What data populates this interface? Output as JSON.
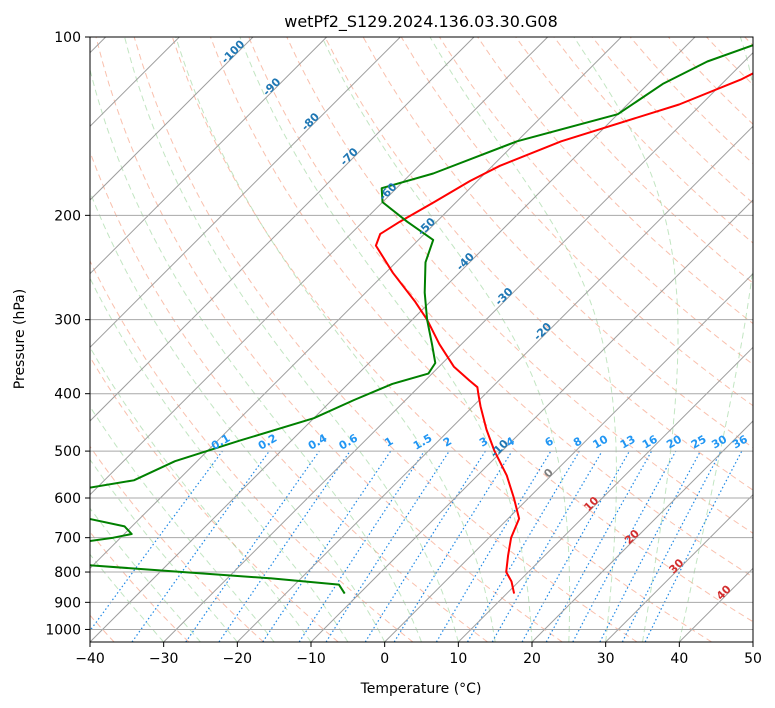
{
  "chart_data": {
    "type": "line",
    "title": "wetPf2_S129.2024.136.03.30.G08",
    "xlabel": "Temperature (°C)",
    "ylabel": "Pressure (hPa)",
    "xlim": [
      -40,
      50
    ],
    "ylim_hpa": [
      1050,
      100
    ],
    "y_scale": "log",
    "grid": true,
    "skew_degrees": 45,
    "x_ticks": [
      "−40",
      "−30",
      "−20",
      "−10",
      "0",
      "10",
      "20",
      "30",
      "40",
      "50"
    ],
    "x_tick_values": [
      -40,
      -30,
      -20,
      -10,
      0,
      10,
      20,
      30,
      40,
      50
    ],
    "y_ticks": [
      "100",
      "200",
      "300",
      "400",
      "500",
      "600",
      "700",
      "800",
      "900",
      "1000"
    ],
    "y_tick_values": [
      100,
      200,
      300,
      400,
      500,
      600,
      700,
      800,
      900,
      1000
    ],
    "series": [
      {
        "kind": "temperature",
        "color": "#ff0000",
        "points": [
          [
            100,
            -24
          ],
          [
            108,
            -25
          ],
          [
            118,
            -28
          ],
          [
            130,
            -33
          ],
          [
            150,
            -44
          ],
          [
            165,
            -49
          ],
          [
            175,
            -51
          ],
          [
            190,
            -53
          ],
          [
            205,
            -55
          ],
          [
            215,
            -56
          ],
          [
            225,
            -55
          ],
          [
            250,
            -49
          ],
          [
            280,
            -42
          ],
          [
            300,
            -38
          ],
          [
            330,
            -33
          ],
          [
            360,
            -28
          ],
          [
            380,
            -24
          ],
          [
            390,
            -22
          ],
          [
            400,
            -21
          ],
          [
            420,
            -19
          ],
          [
            460,
            -15
          ],
          [
            500,
            -11
          ],
          [
            550,
            -6
          ],
          [
            600,
            -2
          ],
          [
            650,
            1.5
          ],
          [
            700,
            3
          ],
          [
            750,
            5
          ],
          [
            800,
            7
          ],
          [
            830,
            9
          ],
          [
            870,
            11
          ]
        ]
      },
      {
        "kind": "dewpoint",
        "color": "#008000",
        "points": [
          [
            100,
            -29
          ],
          [
            110,
            -35
          ],
          [
            120,
            -38
          ],
          [
            135,
            -40
          ],
          [
            150,
            -50
          ],
          [
            170,
            -57
          ],
          [
            180,
            -62
          ],
          [
            190,
            -60
          ],
          [
            205,
            -54
          ],
          [
            220,
            -48
          ],
          [
            240,
            -46
          ],
          [
            270,
            -42
          ],
          [
            300,
            -38
          ],
          [
            330,
            -34
          ],
          [
            355,
            -31
          ],
          [
            370,
            -30.5
          ],
          [
            385,
            -34
          ],
          [
            410,
            -37
          ],
          [
            440,
            -40
          ],
          [
            480,
            -47
          ],
          [
            520,
            -53
          ],
          [
            560,
            -56
          ],
          [
            600,
            -68
          ],
          [
            620,
            -67
          ],
          [
            650,
            -57
          ],
          [
            670,
            -51
          ],
          [
            690,
            -49
          ],
          [
            700,
            -51
          ],
          [
            720,
            -57
          ],
          [
            740,
            -61
          ],
          [
            760,
            -60
          ],
          [
            780,
            -50
          ],
          [
            800,
            -37
          ],
          [
            820,
            -24
          ],
          [
            840,
            -14
          ],
          [
            870,
            -12
          ]
        ]
      }
    ],
    "dry_adiabat_labels": [
      "-100",
      "-90",
      "-80",
      "-70",
      "-60",
      "-50",
      "-40",
      "-30",
      "-20",
      "-10",
      "0",
      "10",
      "20",
      "30",
      "40"
    ],
    "mixing_ratio_labels": [
      "0.1",
      "0.2",
      "0.4",
      "0.6",
      "1",
      "1.5",
      "2",
      "3",
      "4",
      "6",
      "8",
      "10",
      "13",
      "16",
      "20",
      "25",
      "30",
      "36"
    ]
  }
}
